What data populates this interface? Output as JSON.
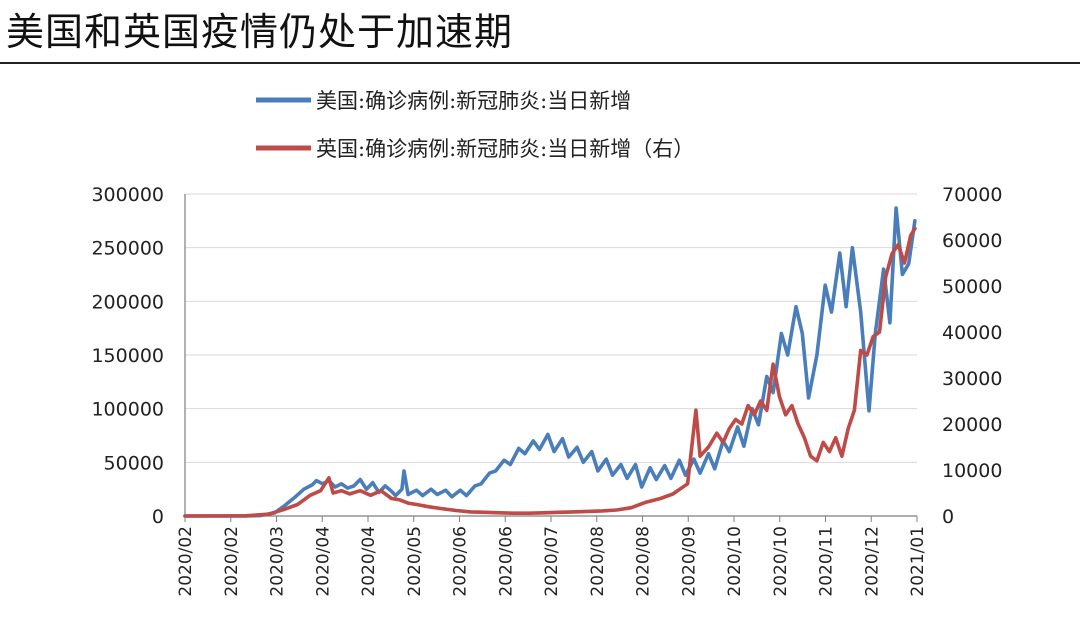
{
  "page": {
    "title": "美国和英国疫情仍处于加速期"
  },
  "colors": {
    "us": "#4a7ebb",
    "uk": "#be4b48",
    "grid": "#d9d9d9",
    "axis": "#7f7f7f"
  },
  "chart_data": {
    "type": "line",
    "title": "美国和英国疫情仍处于加速期",
    "legend_position": "top",
    "grid": true,
    "x_tick_labels": [
      "2020/02",
      "2020/02",
      "2020/03",
      "2020/04",
      "2020/04",
      "2020/05",
      "2020/06",
      "2020/06",
      "2020/07",
      "2020/08",
      "2020/08",
      "2020/09",
      "2020/10",
      "2020/10",
      "2020/11",
      "2020/12",
      "2021/01"
    ],
    "y_left": {
      "ylim": [
        0,
        300000
      ],
      "ticks": [
        0,
        50000,
        100000,
        150000,
        200000,
        250000,
        300000
      ],
      "tick_labels": [
        "0",
        "50000",
        "100000",
        "150000",
        "200000",
        "250000",
        "300000"
      ]
    },
    "y_right": {
      "ylim": [
        0,
        70000
      ],
      "ticks": [
        0,
        10000,
        20000,
        30000,
        40000,
        50000,
        60000,
        70000
      ],
      "tick_labels": [
        "0",
        "10000",
        "20000",
        "30000",
        "40000",
        "50000",
        "60000",
        "70000"
      ]
    },
    "series": [
      {
        "name": "美国:确诊病例:新冠肺炎:当日新增",
        "axis": "left",
        "color": "#4a7ebb",
        "points": [
          [
            "2020-02-01",
            0
          ],
          [
            "2020-02-15",
            0
          ],
          [
            "2020-03-01",
            50
          ],
          [
            "2020-03-08",
            400
          ],
          [
            "2020-03-15",
            3000
          ],
          [
            "2020-03-20",
            10000
          ],
          [
            "2020-03-25",
            18000
          ],
          [
            "2020-03-29",
            25000
          ],
          [
            "2020-04-02",
            29000
          ],
          [
            "2020-04-04",
            33000
          ],
          [
            "2020-04-07",
            30000
          ],
          [
            "2020-04-10",
            33000
          ],
          [
            "2020-04-13",
            27000
          ],
          [
            "2020-04-16",
            30000
          ],
          [
            "2020-04-19",
            26000
          ],
          [
            "2020-04-22",
            28000
          ],
          [
            "2020-04-25",
            34000
          ],
          [
            "2020-04-28",
            25000
          ],
          [
            "2020-05-01",
            31000
          ],
          [
            "2020-05-04",
            22000
          ],
          [
            "2020-05-07",
            28000
          ],
          [
            "2020-05-10",
            23000
          ],
          [
            "2020-05-12",
            19000
          ],
          [
            "2020-05-15",
            25000
          ],
          [
            "2020-05-16",
            42000
          ],
          [
            "2020-05-18",
            20000
          ],
          [
            "2020-05-22",
            24000
          ],
          [
            "2020-05-25",
            19000
          ],
          [
            "2020-05-29",
            25000
          ],
          [
            "2020-06-01",
            20000
          ],
          [
            "2020-06-05",
            24000
          ],
          [
            "2020-06-08",
            18000
          ],
          [
            "2020-06-12",
            24000
          ],
          [
            "2020-06-15",
            19000
          ],
          [
            "2020-06-19",
            28000
          ],
          [
            "2020-06-22",
            30000
          ],
          [
            "2020-06-26",
            40000
          ],
          [
            "2020-06-29",
            42000
          ],
          [
            "2020-07-03",
            52000
          ],
          [
            "2020-07-06",
            48000
          ],
          [
            "2020-07-10",
            63000
          ],
          [
            "2020-07-13",
            58000
          ],
          [
            "2020-07-17",
            70000
          ],
          [
            "2020-07-20",
            62000
          ],
          [
            "2020-07-24",
            76000
          ],
          [
            "2020-07-27",
            60000
          ],
          [
            "2020-07-31",
            72000
          ],
          [
            "2020-08-03",
            55000
          ],
          [
            "2020-08-07",
            64000
          ],
          [
            "2020-08-10",
            50000
          ],
          [
            "2020-08-14",
            60000
          ],
          [
            "2020-08-17",
            42000
          ],
          [
            "2020-08-21",
            53000
          ],
          [
            "2020-08-24",
            38000
          ],
          [
            "2020-08-28",
            48000
          ],
          [
            "2020-08-31",
            35000
          ],
          [
            "2020-09-04",
            48000
          ],
          [
            "2020-09-07",
            27000
          ],
          [
            "2020-09-11",
            45000
          ],
          [
            "2020-09-14",
            34000
          ],
          [
            "2020-09-18",
            47000
          ],
          [
            "2020-09-21",
            35000
          ],
          [
            "2020-09-25",
            52000
          ],
          [
            "2020-09-28",
            38000
          ],
          [
            "2020-10-02",
            53000
          ],
          [
            "2020-10-05",
            40000
          ],
          [
            "2020-10-09",
            58000
          ],
          [
            "2020-10-12",
            44000
          ],
          [
            "2020-10-16",
            70000
          ],
          [
            "2020-10-19",
            60000
          ],
          [
            "2020-10-23",
            83000
          ],
          [
            "2020-10-26",
            65000
          ],
          [
            "2020-10-30",
            100000
          ],
          [
            "2020-11-02",
            85000
          ],
          [
            "2020-11-06",
            130000
          ],
          [
            "2020-11-09",
            115000
          ],
          [
            "2020-11-13",
            170000
          ],
          [
            "2020-11-16",
            150000
          ],
          [
            "2020-11-20",
            195000
          ],
          [
            "2020-11-23",
            170000
          ],
          [
            "2020-11-26",
            110000
          ],
          [
            "2020-11-30",
            150000
          ],
          [
            "2020-12-04",
            215000
          ],
          [
            "2020-12-07",
            190000
          ],
          [
            "2020-12-11",
            245000
          ],
          [
            "2020-12-14",
            195000
          ],
          [
            "2020-12-17",
            250000
          ],
          [
            "2020-12-21",
            190000
          ],
          [
            "2020-12-25",
            98000
          ],
          [
            "2020-12-28",
            170000
          ],
          [
            "2021-01-01",
            230000
          ],
          [
            "2021-01-04",
            180000
          ],
          [
            "2021-01-07",
            287000
          ],
          [
            "2021-01-10",
            225000
          ],
          [
            "2021-01-13",
            235000
          ],
          [
            "2021-01-16",
            275000
          ]
        ]
      },
      {
        "name": "英国:确诊病例:新冠肺炎:当日新增（右）",
        "axis": "right",
        "color": "#be4b48",
        "points": [
          [
            "2020-02-01",
            0
          ],
          [
            "2020-03-01",
            40
          ],
          [
            "2020-03-12",
            400
          ],
          [
            "2020-03-20",
            1500
          ],
          [
            "2020-03-26",
            2500
          ],
          [
            "2020-04-01",
            4500
          ],
          [
            "2020-04-06",
            5500
          ],
          [
            "2020-04-10",
            8300
          ],
          [
            "2020-04-12",
            5000
          ],
          [
            "2020-04-16",
            5500
          ],
          [
            "2020-04-20",
            4800
          ],
          [
            "2020-04-25",
            5500
          ],
          [
            "2020-04-30",
            4500
          ],
          [
            "2020-05-05",
            5500
          ],
          [
            "2020-05-10",
            3800
          ],
          [
            "2020-05-14",
            3500
          ],
          [
            "2020-05-18",
            2800
          ],
          [
            "2020-05-22",
            2500
          ],
          [
            "2020-05-28",
            2000
          ],
          [
            "2020-06-03",
            1600
          ],
          [
            "2020-06-10",
            1200
          ],
          [
            "2020-06-17",
            900
          ],
          [
            "2020-06-24",
            800
          ],
          [
            "2020-07-01",
            700
          ],
          [
            "2020-07-08",
            600
          ],
          [
            "2020-07-15",
            600
          ],
          [
            "2020-07-22",
            700
          ],
          [
            "2020-07-29",
            800
          ],
          [
            "2020-08-05",
            900
          ],
          [
            "2020-08-12",
            1000
          ],
          [
            "2020-08-19",
            1100
          ],
          [
            "2020-08-26",
            1300
          ],
          [
            "2020-09-02",
            1800
          ],
          [
            "2020-09-09",
            3000
          ],
          [
            "2020-09-16",
            3800
          ],
          [
            "2020-09-22",
            4800
          ],
          [
            "2020-09-29",
            7000
          ],
          [
            "2020-10-03",
            23000
          ],
          [
            "2020-10-05",
            13000
          ],
          [
            "2020-10-09",
            15000
          ],
          [
            "2020-10-13",
            18000
          ],
          [
            "2020-10-16",
            16000
          ],
          [
            "2020-10-19",
            19000
          ],
          [
            "2020-10-22",
            21000
          ],
          [
            "2020-10-25",
            20000
          ],
          [
            "2020-10-28",
            24000
          ],
          [
            "2020-10-31",
            22000
          ],
          [
            "2020-11-03",
            25000
          ],
          [
            "2020-11-06",
            23000
          ],
          [
            "2020-11-09",
            33000
          ],
          [
            "2020-11-12",
            26000
          ],
          [
            "2020-11-15",
            22000
          ],
          [
            "2020-11-18",
            24000
          ],
          [
            "2020-11-21",
            20000
          ],
          [
            "2020-11-24",
            17000
          ],
          [
            "2020-11-27",
            13000
          ],
          [
            "2020-11-30",
            12000
          ],
          [
            "2020-12-03",
            16000
          ],
          [
            "2020-12-06",
            14000
          ],
          [
            "2020-12-09",
            17000
          ],
          [
            "2020-12-12",
            13000
          ],
          [
            "2020-12-15",
            19000
          ],
          [
            "2020-12-18",
            23000
          ],
          [
            "2020-12-21",
            36000
          ],
          [
            "2020-12-24",
            35000
          ],
          [
            "2020-12-27",
            39000
          ],
          [
            "2020-12-30",
            40000
          ],
          [
            "2021-01-02",
            52000
          ],
          [
            "2021-01-05",
            57000
          ],
          [
            "2021-01-08",
            59000
          ],
          [
            "2021-01-11",
            55000
          ],
          [
            "2021-01-14",
            61000
          ],
          [
            "2021-01-16",
            62500
          ]
        ]
      }
    ]
  }
}
